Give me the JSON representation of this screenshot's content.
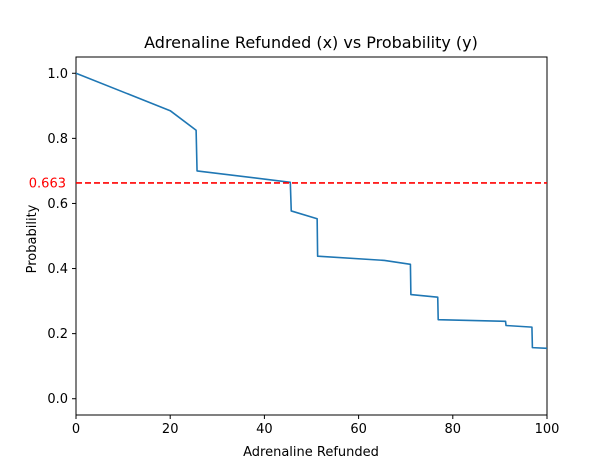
{
  "chart_data": {
    "type": "line",
    "title": "Adrenaline Refunded (x) vs Probability (y)",
    "xlabel": "Adrenaline Refunded",
    "ylabel": "Probability",
    "xlim": [
      0,
      100
    ],
    "ylim": [
      -0.05,
      1.05
    ],
    "x_ticks": [
      0,
      20,
      40,
      60,
      80,
      100
    ],
    "y_ticks": [
      0.0,
      0.2,
      0.4,
      0.6,
      0.8,
      1.0
    ],
    "x_tick_labels": [
      "0",
      "20",
      "40",
      "60",
      "80",
      "100"
    ],
    "y_tick_labels": [
      "0.0",
      "0.2",
      "0.4",
      "0.6",
      "0.8",
      "1.0"
    ],
    "grid": false,
    "series": [
      {
        "color": "#1f77b4",
        "x": [
          0,
          20,
          25.5,
          25.7,
          45.5,
          45.7,
          51.2,
          51.3,
          65.5,
          71.0,
          71.1,
          76.8,
          76.9,
          91.2,
          91.3,
          96.8,
          96.9,
          100
        ],
        "y": [
          1.0,
          0.885,
          0.825,
          0.7,
          0.665,
          0.577,
          0.553,
          0.438,
          0.425,
          0.413,
          0.32,
          0.312,
          0.243,
          0.238,
          0.225,
          0.22,
          0.157,
          0.155
        ]
      }
    ],
    "reference_line": {
      "y": 0.663,
      "label": "0.663",
      "color": "#ff0000",
      "style": "dashed"
    }
  }
}
